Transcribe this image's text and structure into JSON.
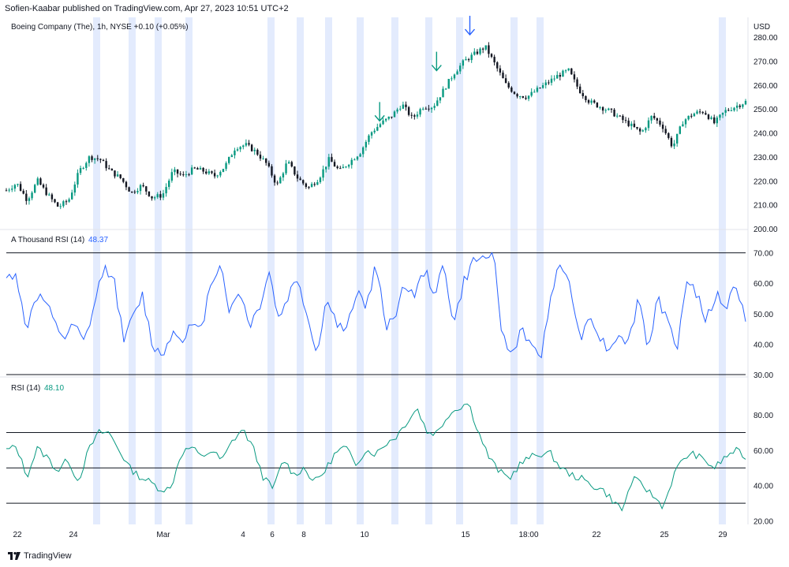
{
  "header": {
    "published": "Sofien-Kaabar published on TradingView.com, Apr 27, 2023 10:51 UTC+2"
  },
  "footer": {
    "brand": "TradingView"
  },
  "colors": {
    "up": "#089981",
    "down": "#131722",
    "blue_line": "#2962ff",
    "green_line": "#089981",
    "session": "#e3ebfd",
    "level": "#131722"
  },
  "chart_data": [
    {
      "type": "candlestick",
      "title": "Boeing Company (The), 1h, NYSE  +0.10 (+0.05%)",
      "ylabel": "USD",
      "ylim": [
        200,
        280
      ],
      "yticks": [
        "280.00",
        "270.00",
        "260.00",
        "250.00",
        "240.00",
        "230.00",
        "220.00",
        "210.00",
        "200.00"
      ],
      "close_path": [
        216,
        219,
        212,
        220,
        214,
        209,
        212,
        224,
        230,
        229,
        224,
        221,
        215,
        218,
        213,
        214,
        224,
        222,
        225,
        224,
        222,
        226,
        234,
        235,
        232,
        227,
        218,
        228,
        221,
        217,
        221,
        229,
        224,
        228,
        232,
        240,
        244,
        247,
        252,
        246,
        251,
        251,
        258,
        265,
        270,
        273,
        276,
        268,
        260,
        256,
        255,
        258,
        261,
        264,
        266,
        258,
        253,
        251,
        249,
        246,
        243,
        240,
        247,
        243,
        234,
        245,
        248,
        249,
        244,
        249,
        251,
        253
      ],
      "signals": [
        {
          "direction": "down",
          "color": "#089981",
          "x_frac": 0.505,
          "y": 243
        },
        {
          "direction": "down",
          "color": "#089981",
          "x_frac": 0.582,
          "y": 264
        },
        {
          "direction": "down",
          "color": "#2962ff",
          "x_frac": 0.627,
          "y": 279
        }
      ]
    },
    {
      "type": "line",
      "title": "A Thousand RSI (14)",
      "value_label": "48.37",
      "ylim": [
        30,
        73
      ],
      "yticks": [
        "70.00",
        "60.00",
        "50.00",
        "40.00",
        "30.00"
      ],
      "levels": [
        70,
        30
      ],
      "series": [
        {
          "values": [
            61,
            64,
            44,
            56,
            54,
            46,
            42,
            46,
            40,
            52,
            65,
            63,
            42,
            48,
            56,
            40,
            36,
            44,
            42,
            46,
            44,
            60,
            67,
            50,
            58,
            46,
            52,
            64,
            48,
            56,
            62,
            48,
            37,
            56,
            46,
            44,
            58,
            52,
            66,
            46,
            50,
            60,
            56,
            64,
            57,
            66,
            46,
            60,
            67,
            68,
            72,
            42,
            36,
            46,
            38,
            36,
            58,
            66,
            60,
            40,
            51,
            42,
            38,
            44,
            40,
            56,
            38,
            56,
            46,
            40,
            62,
            56,
            48,
            56,
            52,
            60,
            48
          ]
        }
      ]
    },
    {
      "type": "line",
      "title": "RSI (14)",
      "value_label": "48.10",
      "ylim": [
        18,
        93
      ],
      "yticks": [
        "80.00",
        "60.00",
        "40.00",
        "20.00"
      ],
      "levels": [
        70,
        50,
        30
      ],
      "series": [
        {
          "values": [
            60,
            62,
            45,
            61,
            56,
            48,
            55,
            42,
            60,
            70,
            70,
            60,
            50,
            45,
            42,
            38,
            38,
            58,
            62,
            56,
            60,
            54,
            65,
            72,
            62,
            45,
            38,
            55,
            46,
            50,
            42,
            48,
            58,
            62,
            52,
            60,
            58,
            64,
            68,
            76,
            84,
            70,
            70,
            80,
            84,
            87,
            70,
            56,
            48,
            44,
            52,
            56,
            58,
            58,
            50,
            46,
            44,
            40,
            38,
            32,
            26,
            44,
            40,
            34,
            28,
            46,
            56,
            58,
            54,
            50,
            56,
            60,
            56
          ]
        }
      ]
    }
  ],
  "x_axis": {
    "ticks": [
      "22",
      "24",
      "Mar",
      "4",
      "6",
      "8",
      "10",
      "15",
      "18:00",
      "22",
      "25",
      "29"
    ]
  },
  "sessions": [
    "sess-1",
    "sess-2",
    "sess-3",
    "sess-4",
    "sess-5",
    "sess-6",
    "sess-7",
    "sess-8",
    "sess-9",
    "sess-10",
    "sess-11",
    "sess-12",
    "sess-13"
  ]
}
